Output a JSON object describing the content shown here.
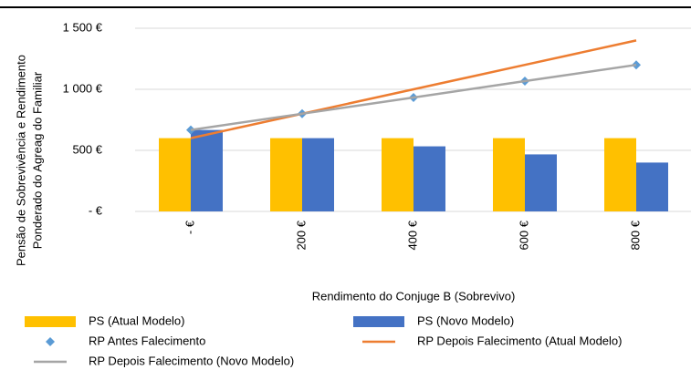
{
  "chart_data": {
    "type": "bar",
    "y_label": [
      "Pensão de Sobrevivência e Rendimento",
      "Ponderado do Agreag do Familiar"
    ],
    "x_label": "Rendimento do Conjuge B (Sobrevivo)",
    "categories": [
      "- €",
      "200 €",
      "400 €",
      "600 €",
      "800 €"
    ],
    "ylim": [
      0,
      1500
    ],
    "yticks": [
      {
        "value": 0,
        "label": "- €"
      },
      {
        "value": 500,
        "label": "500 €"
      },
      {
        "value": 1000,
        "label": "1 000 €"
      },
      {
        "value": 1500,
        "label": "1 500 €"
      }
    ],
    "grid": true,
    "series": [
      {
        "name": "PS (Atual Modelo)",
        "type": "bar",
        "color": "#FFC000",
        "values": [
          600,
          600,
          600,
          600,
          600
        ]
      },
      {
        "name": "PS (Novo Modelo)",
        "type": "bar",
        "color": "#4472C4",
        "values": [
          667,
          600,
          533,
          467,
          400
        ]
      },
      {
        "name": "RP Antes Falecimento",
        "type": "scatter",
        "color": "#5B9BD5",
        "values": [
          667,
          800,
          933,
          1067,
          1200
        ]
      },
      {
        "name": "RP Depois Falecimento (Atual Modelo)",
        "type": "line",
        "color": "#ED7D31",
        "values": [
          600,
          800,
          1000,
          1200,
          1400
        ]
      },
      {
        "name": "RP Depois Falecimento (Novo Modelo)",
        "type": "line",
        "color": "#A5A5A5",
        "values": [
          667,
          800,
          933,
          1067,
          1200
        ]
      }
    ]
  }
}
